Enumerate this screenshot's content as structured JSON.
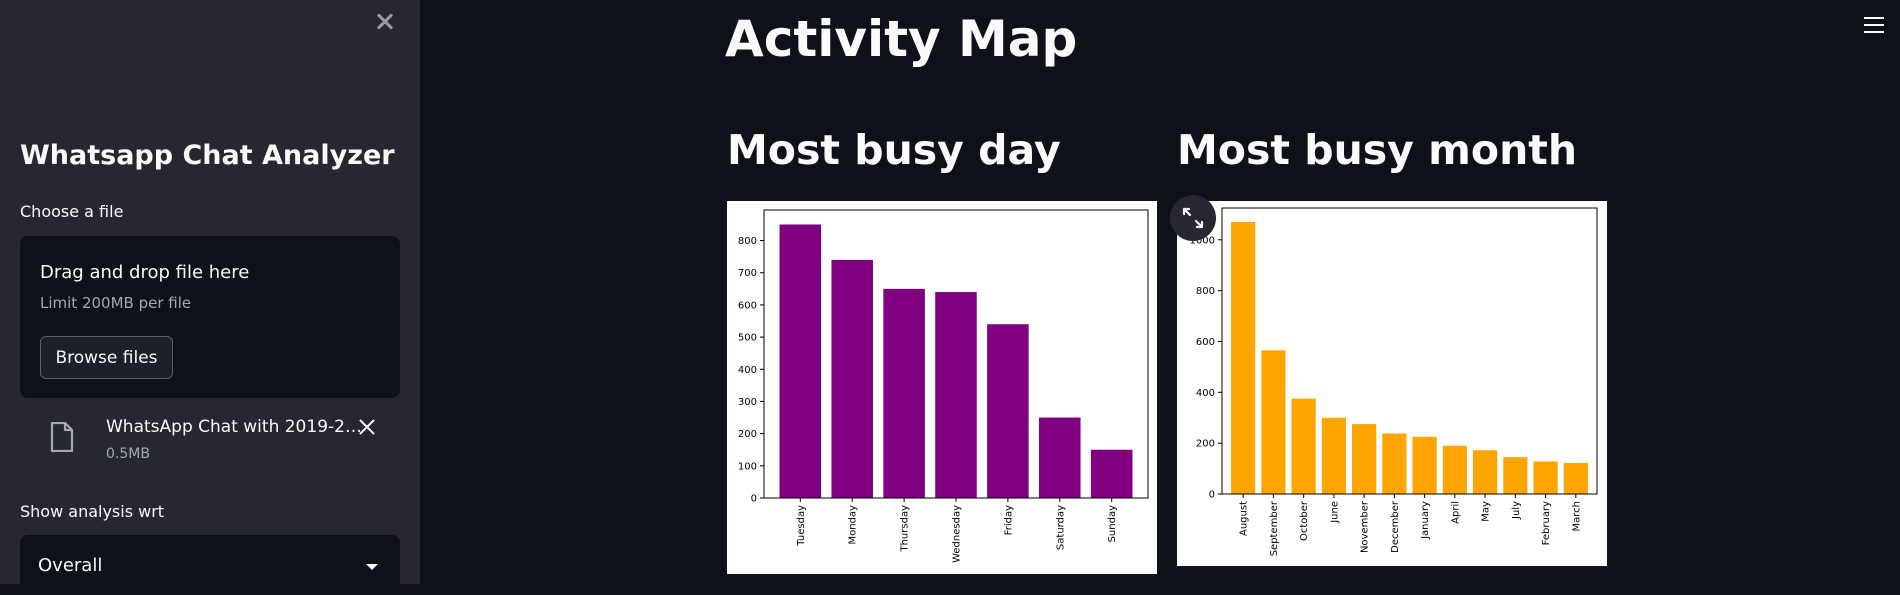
{
  "sidebar": {
    "app_title": "Whatsapp Chat Analyzer",
    "file_label": "Choose a file",
    "dropzone": {
      "title": "Drag and drop file here",
      "limit": "Limit 200MB per file",
      "browse_label": "Browse files"
    },
    "uploaded_file": {
      "name": "WhatsApp Chat with 2019-2…",
      "size": "0.5MB"
    },
    "analysis_label": "Show analysis wrt",
    "analysis_select": {
      "value": "Overall"
    }
  },
  "main": {
    "title": "Activity Map",
    "busy_day_title": "Most busy day",
    "busy_month_title": "Most busy month"
  },
  "chart_data": [
    {
      "type": "bar",
      "title": "",
      "color": "#800080",
      "categories": [
        "Tuesday",
        "Monday",
        "Thursday",
        "Wednesday",
        "Friday",
        "Saturday",
        "Sunday"
      ],
      "values": [
        850,
        740,
        650,
        640,
        540,
        250,
        150
      ],
      "yticks": [
        0,
        100,
        200,
        300,
        400,
        500,
        600,
        700,
        800
      ],
      "ylim": [
        0,
        895
      ],
      "xlabel": "",
      "ylabel": ""
    },
    {
      "type": "bar",
      "title": "",
      "color": "#ffa500",
      "categories": [
        "August",
        "September",
        "October",
        "June",
        "November",
        "December",
        "January",
        "April",
        "May",
        "July",
        "February",
        "March"
      ],
      "values": [
        1070,
        565,
        375,
        300,
        275,
        238,
        225,
        190,
        172,
        145,
        128,
        122
      ],
      "yticks": [
        0,
        200,
        400,
        600,
        800,
        1000
      ],
      "ylim": [
        0,
        1125
      ],
      "xlabel": "",
      "ylabel": ""
    }
  ]
}
